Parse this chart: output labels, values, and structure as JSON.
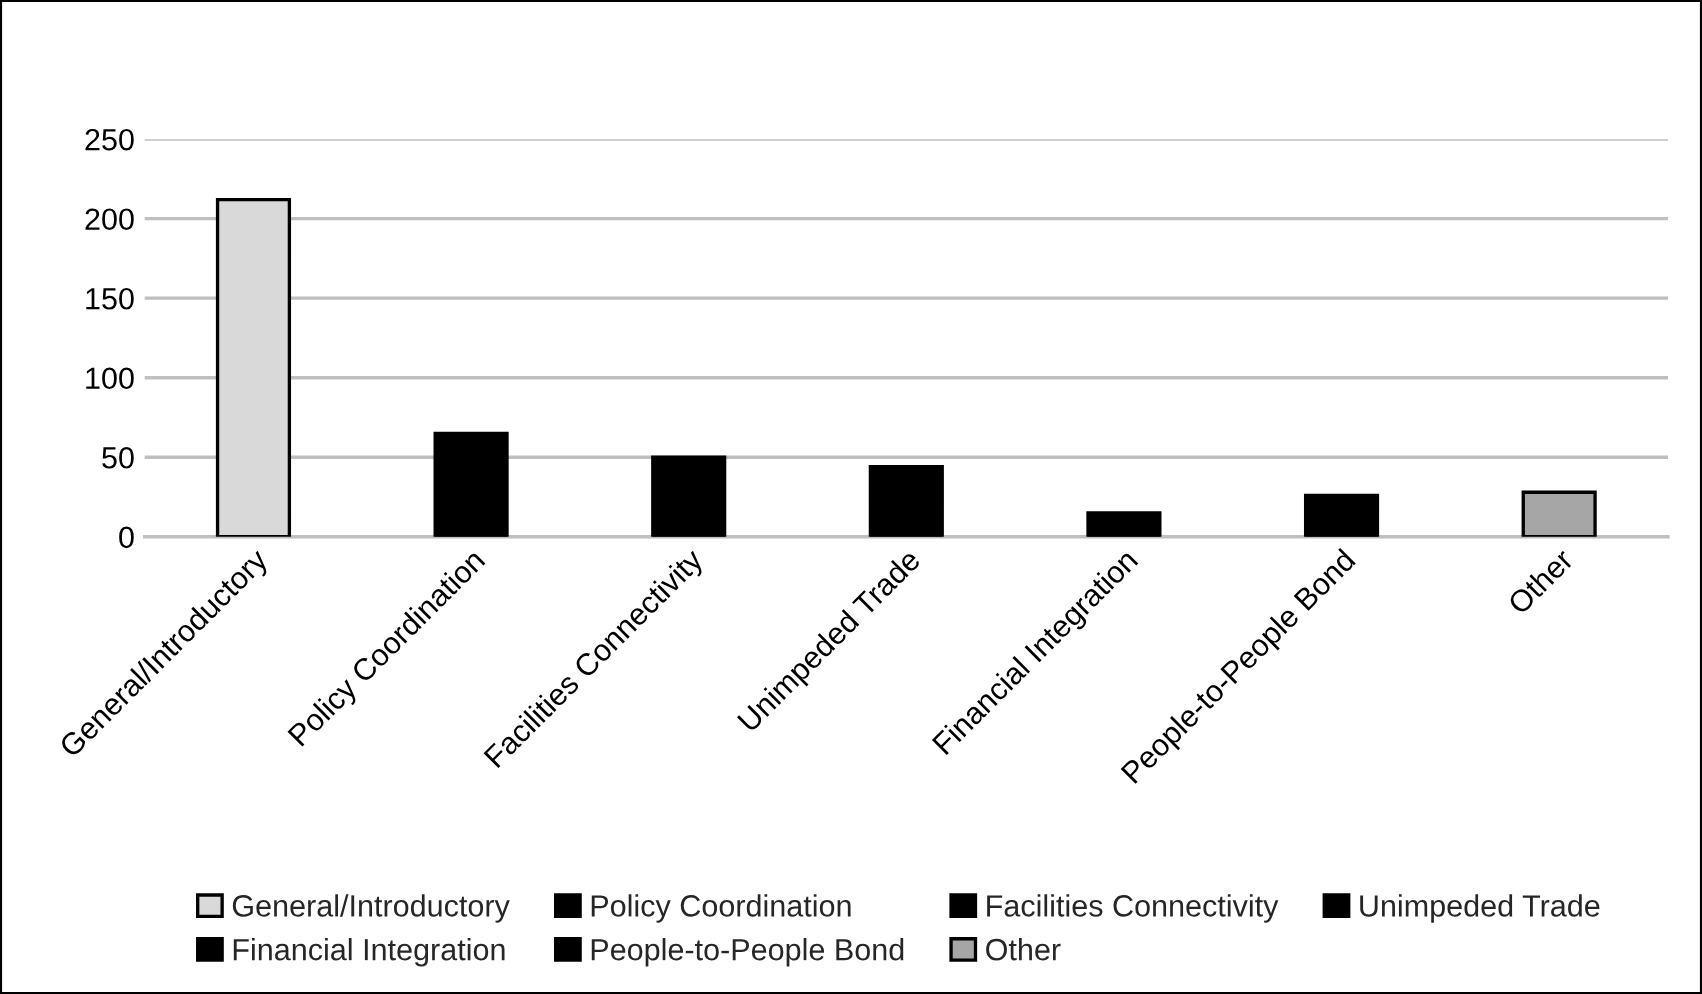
{
  "chart_data": {
    "type": "bar",
    "categories": [
      "General/Introductory",
      "Policy Coordination",
      "Facilities Connectivity",
      "Unimpeded Trade",
      "Financial Integration",
      "People-to-People Bond",
      "Other"
    ],
    "series": [
      {
        "name": "General/Introductory",
        "color": "#d9d9d9",
        "values": [
          212,
          null,
          null,
          null,
          null,
          null,
          null
        ]
      },
      {
        "name": "Policy Coordination",
        "color": "#000000",
        "values": [
          null,
          65,
          null,
          null,
          null,
          null,
          null
        ]
      },
      {
        "name": "Facilities Connectivity",
        "color": "#000000",
        "values": [
          null,
          null,
          50,
          null,
          null,
          null,
          null
        ]
      },
      {
        "name": "Unimpeded Trade",
        "color": "#000000",
        "values": [
          null,
          null,
          null,
          44,
          null,
          null,
          null
        ]
      },
      {
        "name": "Financial Integration",
        "color": "#000000",
        "values": [
          null,
          null,
          null,
          null,
          15,
          null,
          null
        ]
      },
      {
        "name": "People-to-People Bond",
        "color": "#000000",
        "values": [
          null,
          null,
          null,
          null,
          null,
          26,
          null
        ]
      },
      {
        "name": "Other",
        "color": "#a6a6a6",
        "values": [
          null,
          null,
          null,
          null,
          null,
          null,
          28
        ]
      }
    ],
    "ylim": [
      0,
      250
    ],
    "yticks": [
      0,
      50,
      100,
      150,
      200,
      250
    ],
    "grid": "y",
    "legend": "bottom"
  }
}
